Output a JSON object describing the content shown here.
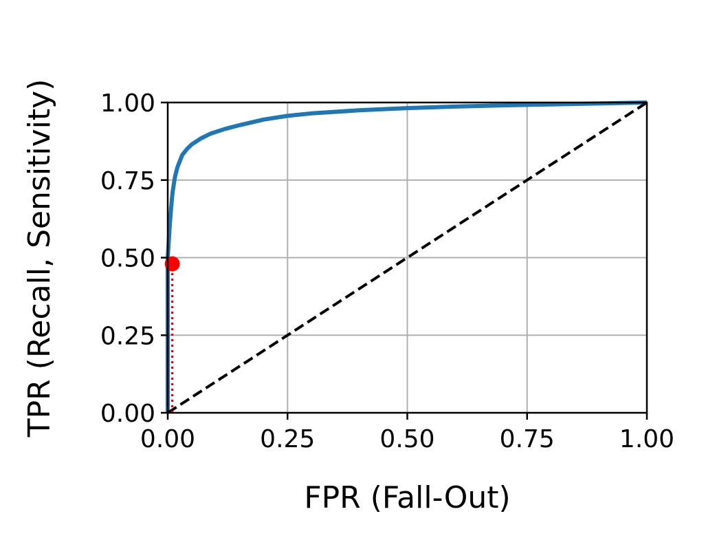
{
  "chart_data": {
    "type": "line",
    "title": "",
    "xlabel": "FPR (Fall-Out)",
    "ylabel": "TPR (Recall, Sensitivity)",
    "xlim": [
      0,
      1
    ],
    "ylim": [
      0,
      1
    ],
    "xticks": [
      "0.00",
      "0.25",
      "0.50",
      "0.75",
      "1.00"
    ],
    "yticks": [
      "0.00",
      "0.25",
      "0.50",
      "0.75",
      "1.00"
    ],
    "xtick_values": [
      0,
      0.25,
      0.5,
      0.75,
      1.0
    ],
    "ytick_values": [
      0,
      0.25,
      0.5,
      0.75,
      1.0
    ],
    "grid": true,
    "legend": "none",
    "series": [
      {
        "style": "solid",
        "color": "#1f77b4",
        "x": [
          0.0,
          0.0,
          0.002,
          0.004,
          0.007,
          0.01,
          0.015,
          0.02,
          0.03,
          0.04,
          0.05,
          0.07,
          0.09,
          0.12,
          0.15,
          0.2,
          0.25,
          0.3,
          0.4,
          0.5,
          0.6,
          0.7,
          0.8,
          0.9,
          1.0
        ],
        "y": [
          0.0,
          0.5,
          0.55,
          0.6,
          0.66,
          0.71,
          0.76,
          0.79,
          0.83,
          0.85,
          0.865,
          0.885,
          0.9,
          0.915,
          0.927,
          0.945,
          0.957,
          0.965,
          0.975,
          0.982,
          0.987,
          0.991,
          0.994,
          0.997,
          1.0
        ]
      },
      {
        "style": "dashed",
        "color": "#000000",
        "x": [
          0,
          1
        ],
        "y": [
          0,
          1
        ]
      },
      {
        "style": "dotted",
        "color": "#ff0000",
        "x": [
          0.0095,
          0.0095
        ],
        "y": [
          0.0,
          0.48
        ]
      }
    ],
    "annotations": [
      {
        "type": "point",
        "color": "#ff0000",
        "x": 0.0095,
        "y": 0.48
      }
    ]
  }
}
